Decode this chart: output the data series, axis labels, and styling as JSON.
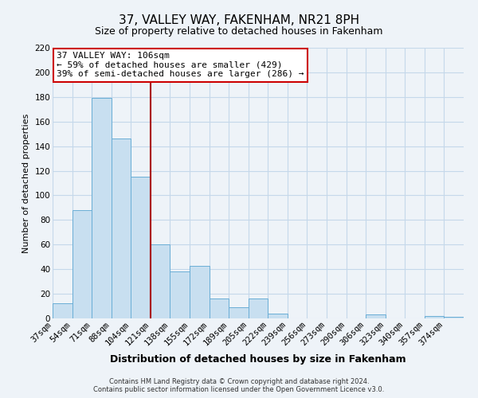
{
  "title": "37, VALLEY WAY, FAKENHAM, NR21 8PH",
  "subtitle": "Size of property relative to detached houses in Fakenham",
  "xlabel": "Distribution of detached houses by size in Fakenham",
  "ylabel": "Number of detached properties",
  "bar_labels": [
    "37sqm",
    "54sqm",
    "71sqm",
    "88sqm",
    "104sqm",
    "121sqm",
    "138sqm",
    "155sqm",
    "172sqm",
    "189sqm",
    "205sqm",
    "222sqm",
    "239sqm",
    "256sqm",
    "273sqm",
    "290sqm",
    "306sqm",
    "323sqm",
    "340sqm",
    "357sqm",
    "374sqm"
  ],
  "bar_values": [
    12,
    88,
    179,
    146,
    115,
    60,
    38,
    43,
    16,
    9,
    16,
    4,
    0,
    0,
    0,
    0,
    3,
    0,
    0,
    2,
    1
  ],
  "bar_color": "#c8dff0",
  "bar_edge_color": "#6aaed6",
  "vline_color": "#aa0000",
  "ylim": [
    0,
    220
  ],
  "yticks": [
    0,
    20,
    40,
    60,
    80,
    100,
    120,
    140,
    160,
    180,
    200,
    220
  ],
  "annotation_title": "37 VALLEY WAY: 106sqm",
  "annotation_line1": "← 59% of detached houses are smaller (429)",
  "annotation_line2": "39% of semi-detached houses are larger (286) →",
  "annotation_box_color": "#ffffff",
  "annotation_border_color": "#cc0000",
  "footer1": "Contains HM Land Registry data © Crown copyright and database right 2024.",
  "footer2": "Contains public sector information licensed under the Open Government Licence v3.0.",
  "grid_color": "#c5d8ea",
  "background_color": "#eef3f8",
  "title_fontsize": 11,
  "subtitle_fontsize": 9,
  "xlabel_fontsize": 9,
  "ylabel_fontsize": 8,
  "tick_fontsize": 7.5,
  "annot_fontsize": 8,
  "footer_fontsize": 6
}
